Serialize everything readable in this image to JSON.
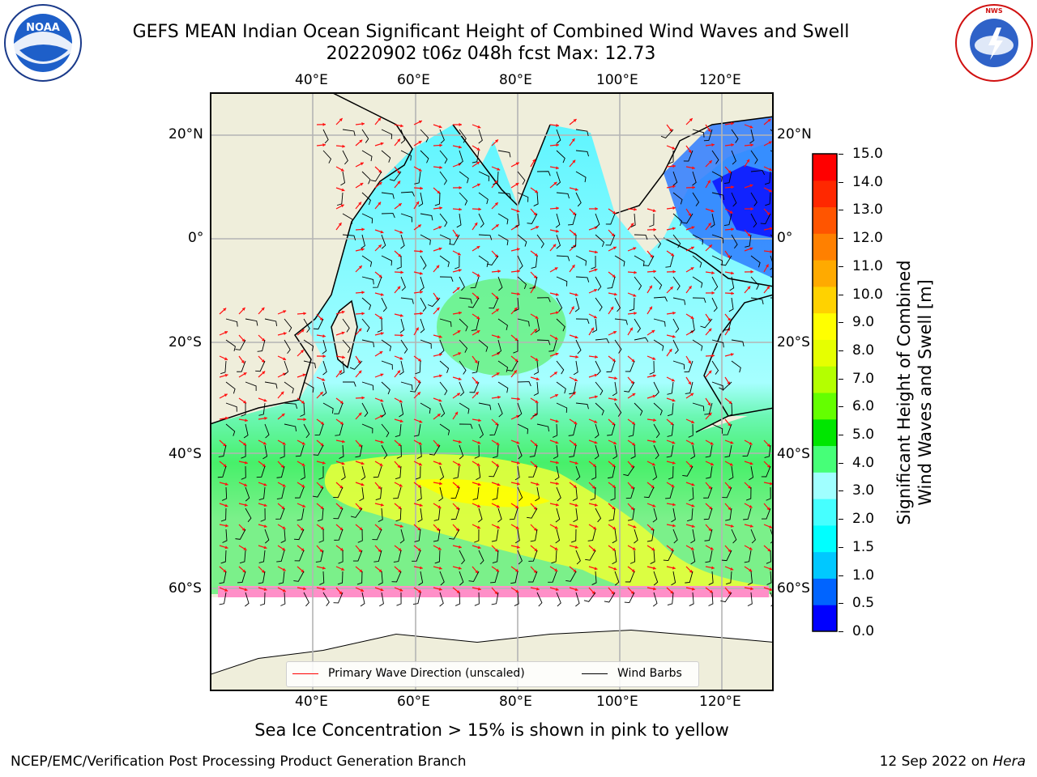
{
  "title": {
    "line1": "GEFS MEAN Indian Ocean Significant Height of Combined Wind Waves and Swell",
    "line2": "20220902 t06z 048h fcst   Max: 12.73"
  },
  "logos": {
    "left": {
      "icon": "noaa-logo",
      "text": "NOAA"
    },
    "right": {
      "icon": "nws-logo",
      "text": "NATIONAL WEATHER SERVICE"
    }
  },
  "map": {
    "lon_labels": [
      "40°E",
      "60°E",
      "80°E",
      "100°E",
      "120°E"
    ],
    "lat_labels": [
      "20°N",
      "0°",
      "20°S",
      "40°S",
      "60°S"
    ],
    "extent": {
      "lon": [
        22,
        130
      ],
      "lat": [
        -80,
        27
      ]
    }
  },
  "legend": {
    "wave_label": "Primary Wave Direction (unscaled)",
    "wave_color": "#ff0000",
    "barb_label": "Wind Barbs",
    "barb_color": "#000000"
  },
  "colorbar": {
    "label_line1": "Significant Height of Combined",
    "label_line2": "Wind Waves and Swell [m]",
    "ticks": [
      "15.0",
      "14.0",
      "13.0",
      "12.0",
      "11.0",
      "10.0",
      "9.0",
      "8.0",
      "7.0",
      "6.0",
      "5.0",
      "4.0",
      "3.0",
      "2.0",
      "1.5",
      "1.0",
      "0.5",
      "0.0"
    ],
    "colors": [
      "#0000ff",
      "#0064ff",
      "#00c8ff",
      "#00ffff",
      "#46ffff",
      "#a0ffff",
      "#46ff78",
      "#00e600",
      "#64ff00",
      "#b4ff00",
      "#e6ff00",
      "#ffff00",
      "#ffd200",
      "#ffaa00",
      "#ff8000",
      "#ff5500",
      "#ff2800",
      "#ff0000"
    ]
  },
  "caption": "Sea Ice Concentration > 15% is shown in pink to yellow",
  "footer": {
    "left": "NCEP/EMC/Verification Post Processing Product Generation Branch",
    "right_date": "12 Sep 2022 on ",
    "right_host": "Hera"
  }
}
